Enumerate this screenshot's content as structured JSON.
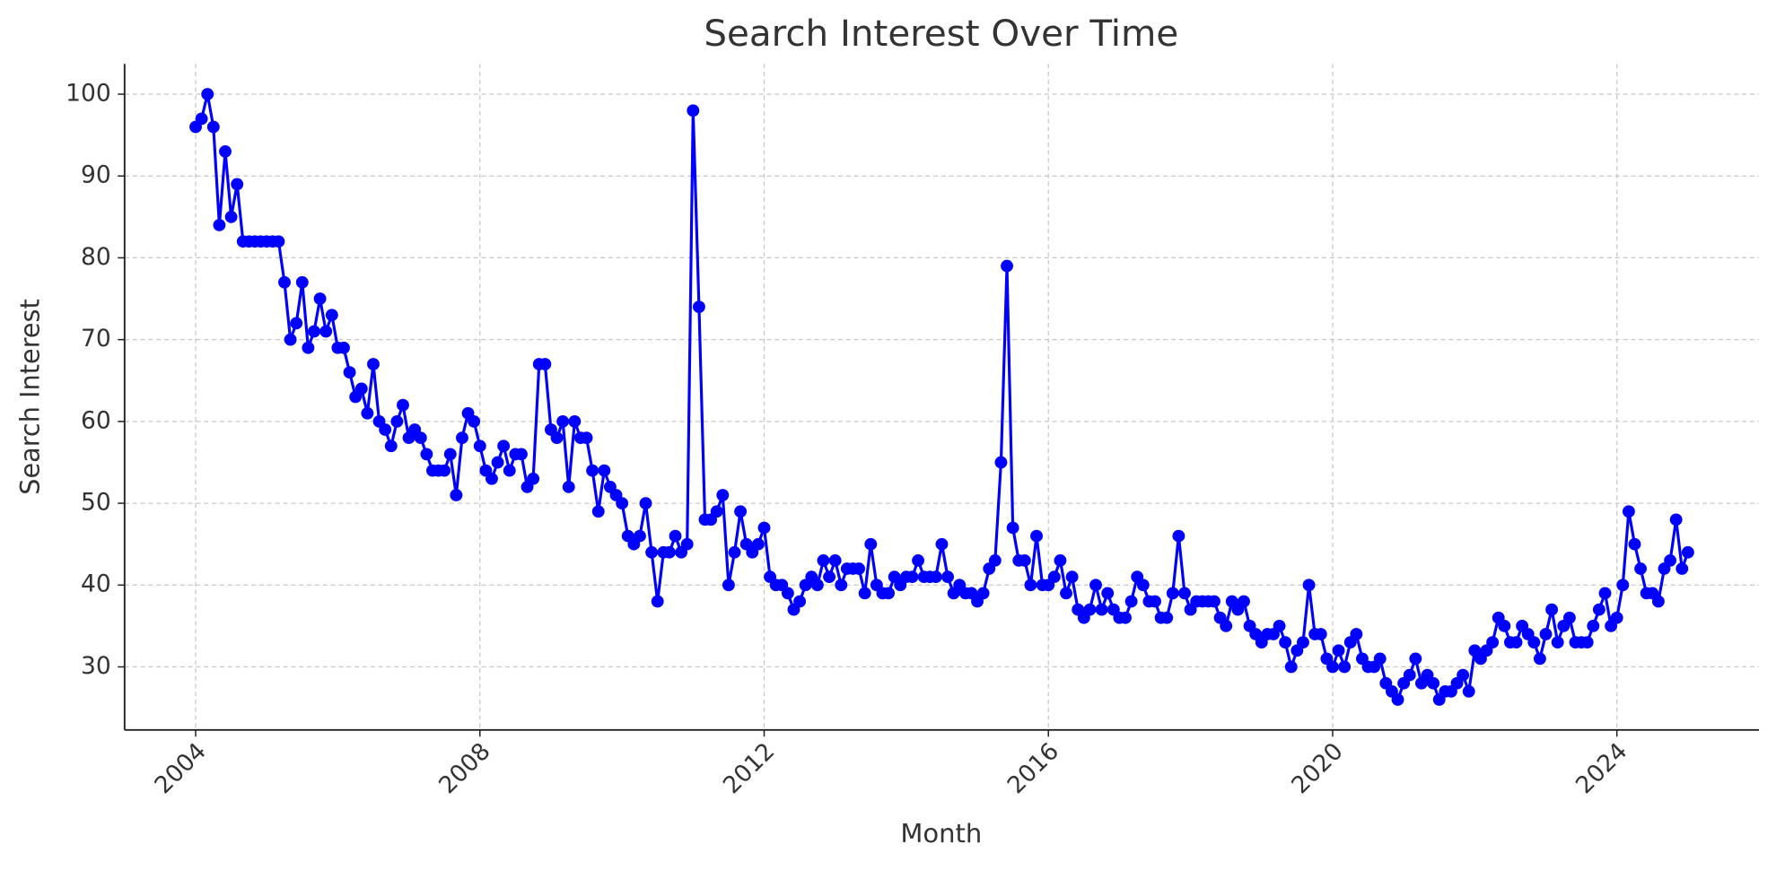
{
  "chart_data": {
    "type": "line",
    "title": "Search Interest Over Time",
    "x_label": "Month",
    "y_label": "Search Interest",
    "x": [
      "2004-01",
      "2004-02",
      "2004-03",
      "2004-04",
      "2004-05",
      "2004-06",
      "2004-07",
      "2004-08",
      "2004-09",
      "2004-10",
      "2004-11",
      "2004-12",
      "2005-01",
      "2005-02",
      "2005-03",
      "2005-04",
      "2005-05",
      "2005-06",
      "2005-07",
      "2005-08",
      "2005-09",
      "2005-10",
      "2005-11",
      "2005-12",
      "2006-01",
      "2006-02",
      "2006-03",
      "2006-04",
      "2006-05",
      "2006-06",
      "2006-07",
      "2006-08",
      "2006-09",
      "2006-10",
      "2006-11",
      "2006-12",
      "2007-01",
      "2007-02",
      "2007-03",
      "2007-04",
      "2007-05",
      "2007-06",
      "2007-07",
      "2007-08",
      "2007-09",
      "2007-10",
      "2007-11",
      "2007-12",
      "2008-01",
      "2008-02",
      "2008-03",
      "2008-04",
      "2008-05",
      "2008-06",
      "2008-07",
      "2008-08",
      "2008-09",
      "2008-10",
      "2008-11",
      "2008-12",
      "2009-01",
      "2009-02",
      "2009-03",
      "2009-04",
      "2009-05",
      "2009-06",
      "2009-07",
      "2009-08",
      "2009-09",
      "2009-10",
      "2009-11",
      "2009-12",
      "2010-01",
      "2010-02",
      "2010-03",
      "2010-04",
      "2010-05",
      "2010-06",
      "2010-07",
      "2010-08",
      "2010-09",
      "2010-10",
      "2010-11",
      "2010-12",
      "2011-01",
      "2011-02",
      "2011-03",
      "2011-04",
      "2011-05",
      "2011-06",
      "2011-07",
      "2011-08",
      "2011-09",
      "2011-10",
      "2011-11",
      "2011-12",
      "2012-01",
      "2012-02",
      "2012-03",
      "2012-04",
      "2012-05",
      "2012-06",
      "2012-07",
      "2012-08",
      "2012-09",
      "2012-10",
      "2012-11",
      "2012-12",
      "2013-01",
      "2013-02",
      "2013-03",
      "2013-04",
      "2013-05",
      "2013-06",
      "2013-07",
      "2013-08",
      "2013-09",
      "2013-10",
      "2013-11",
      "2013-12",
      "2014-01",
      "2014-02",
      "2014-03",
      "2014-04",
      "2014-05",
      "2014-06",
      "2014-07",
      "2014-08",
      "2014-09",
      "2014-10",
      "2014-11",
      "2014-12",
      "2015-01",
      "2015-02",
      "2015-03",
      "2015-04",
      "2015-05",
      "2015-06",
      "2015-07",
      "2015-08",
      "2015-09",
      "2015-10",
      "2015-11",
      "2015-12",
      "2016-01",
      "2016-02",
      "2016-03",
      "2016-04",
      "2016-05",
      "2016-06",
      "2016-07",
      "2016-08",
      "2016-09",
      "2016-10",
      "2016-11",
      "2016-12",
      "2017-01",
      "2017-02",
      "2017-03",
      "2017-04",
      "2017-05",
      "2017-06",
      "2017-07",
      "2017-08",
      "2017-09",
      "2017-10",
      "2017-11",
      "2017-12",
      "2018-01",
      "2018-02",
      "2018-03",
      "2018-04",
      "2018-05",
      "2018-06",
      "2018-07",
      "2018-08",
      "2018-09",
      "2018-10",
      "2018-11",
      "2018-12",
      "2019-01",
      "2019-02",
      "2019-03",
      "2019-04",
      "2019-05",
      "2019-06",
      "2019-07",
      "2019-08",
      "2019-09",
      "2019-10",
      "2019-11",
      "2019-12",
      "2020-01",
      "2020-02",
      "2020-03",
      "2020-04",
      "2020-05",
      "2020-06",
      "2020-07",
      "2020-08",
      "2020-09",
      "2020-10",
      "2020-11",
      "2020-12",
      "2021-01",
      "2021-02",
      "2021-03",
      "2021-04",
      "2021-05",
      "2021-06",
      "2021-07",
      "2021-08",
      "2021-09",
      "2021-10",
      "2021-11",
      "2021-12",
      "2022-01",
      "2022-02",
      "2022-03",
      "2022-04",
      "2022-05",
      "2022-06",
      "2022-07",
      "2022-08",
      "2022-09",
      "2022-10",
      "2022-11",
      "2022-12",
      "2023-01",
      "2023-02",
      "2023-03",
      "2023-04",
      "2023-05",
      "2023-06",
      "2023-07",
      "2023-08",
      "2023-09",
      "2023-10",
      "2023-11",
      "2023-12",
      "2024-01",
      "2024-02",
      "2024-03",
      "2024-04",
      "2024-05",
      "2024-06",
      "2024-07",
      "2024-08",
      "2024-09",
      "2024-10",
      "2024-11",
      "2024-12",
      "2025-01"
    ],
    "series": [
      {
        "color": "#0000ff",
        "values": [
          96,
          97,
          100,
          96,
          84,
          93,
          85,
          89,
          82,
          82,
          82,
          82,
          82,
          82,
          82,
          77,
          70,
          72,
          77,
          69,
          71,
          75,
          71,
          73,
          69,
          69,
          66,
          63,
          64,
          61,
          67,
          60,
          59,
          57,
          60,
          62,
          58,
          59,
          58,
          56,
          54,
          54,
          54,
          56,
          51,
          58,
          61,
          60,
          57,
          54,
          53,
          55,
          57,
          54,
          56,
          56,
          52,
          53,
          67,
          67,
          59,
          58,
          60,
          52,
          60,
          58,
          58,
          54,
          49,
          54,
          52,
          51,
          50,
          46,
          45,
          46,
          50,
          44,
          38,
          44,
          44,
          46,
          44,
          45,
          98,
          74,
          48,
          48,
          49,
          51,
          40,
          44,
          49,
          45,
          44,
          45,
          47,
          41,
          40,
          40,
          39,
          37,
          38,
          40,
          41,
          40,
          43,
          41,
          43,
          40,
          42,
          42,
          42,
          39,
          45,
          40,
          39,
          39,
          41,
          40,
          41,
          41,
          43,
          41,
          41,
          41,
          45,
          41,
          39,
          40,
          39,
          39,
          38,
          39,
          42,
          43,
          55,
          79,
          47,
          43,
          43,
          40,
          46,
          40,
          40,
          41,
          43,
          39,
          41,
          37,
          36,
          37,
          40,
          37,
          39,
          37,
          36,
          36,
          38,
          41,
          40,
          38,
          38,
          36,
          36,
          39,
          46,
          39,
          37,
          38,
          38,
          38,
          38,
          36,
          35,
          38,
          37,
          38,
          35,
          34,
          33,
          34,
          34,
          35,
          33,
          30,
          32,
          33,
          40,
          34,
          34,
          31,
          30,
          32,
          30,
          33,
          34,
          31,
          30,
          30,
          31,
          28,
          27,
          26,
          28,
          29,
          31,
          28,
          29,
          28,
          26,
          27,
          27,
          28,
          29,
          27,
          32,
          31,
          32,
          33,
          36,
          35,
          33,
          33,
          35,
          34,
          33,
          31,
          34,
          37,
          33,
          35,
          36,
          33,
          33,
          33,
          35,
          37,
          39,
          35,
          36,
          40,
          49,
          45,
          42,
          39,
          39,
          38,
          42,
          43,
          48,
          42,
          44
        ]
      }
    ],
    "xlim": [
      "2003-01",
      "2026-01"
    ],
    "xticks": [
      {
        "value": "2004-01",
        "label": "2004"
      },
      {
        "value": "2008-01",
        "label": "2008"
      },
      {
        "value": "2012-01",
        "label": "2012"
      },
      {
        "value": "2016-01",
        "label": "2016"
      },
      {
        "value": "2020-01",
        "label": "2020"
      },
      {
        "value": "2024-01",
        "label": "2024"
      }
    ],
    "ylim": [
      22.3,
      103.7
    ],
    "yticks": [
      30,
      40,
      50,
      60,
      70,
      80,
      90,
      100
    ],
    "grid": true,
    "marker": true
  }
}
